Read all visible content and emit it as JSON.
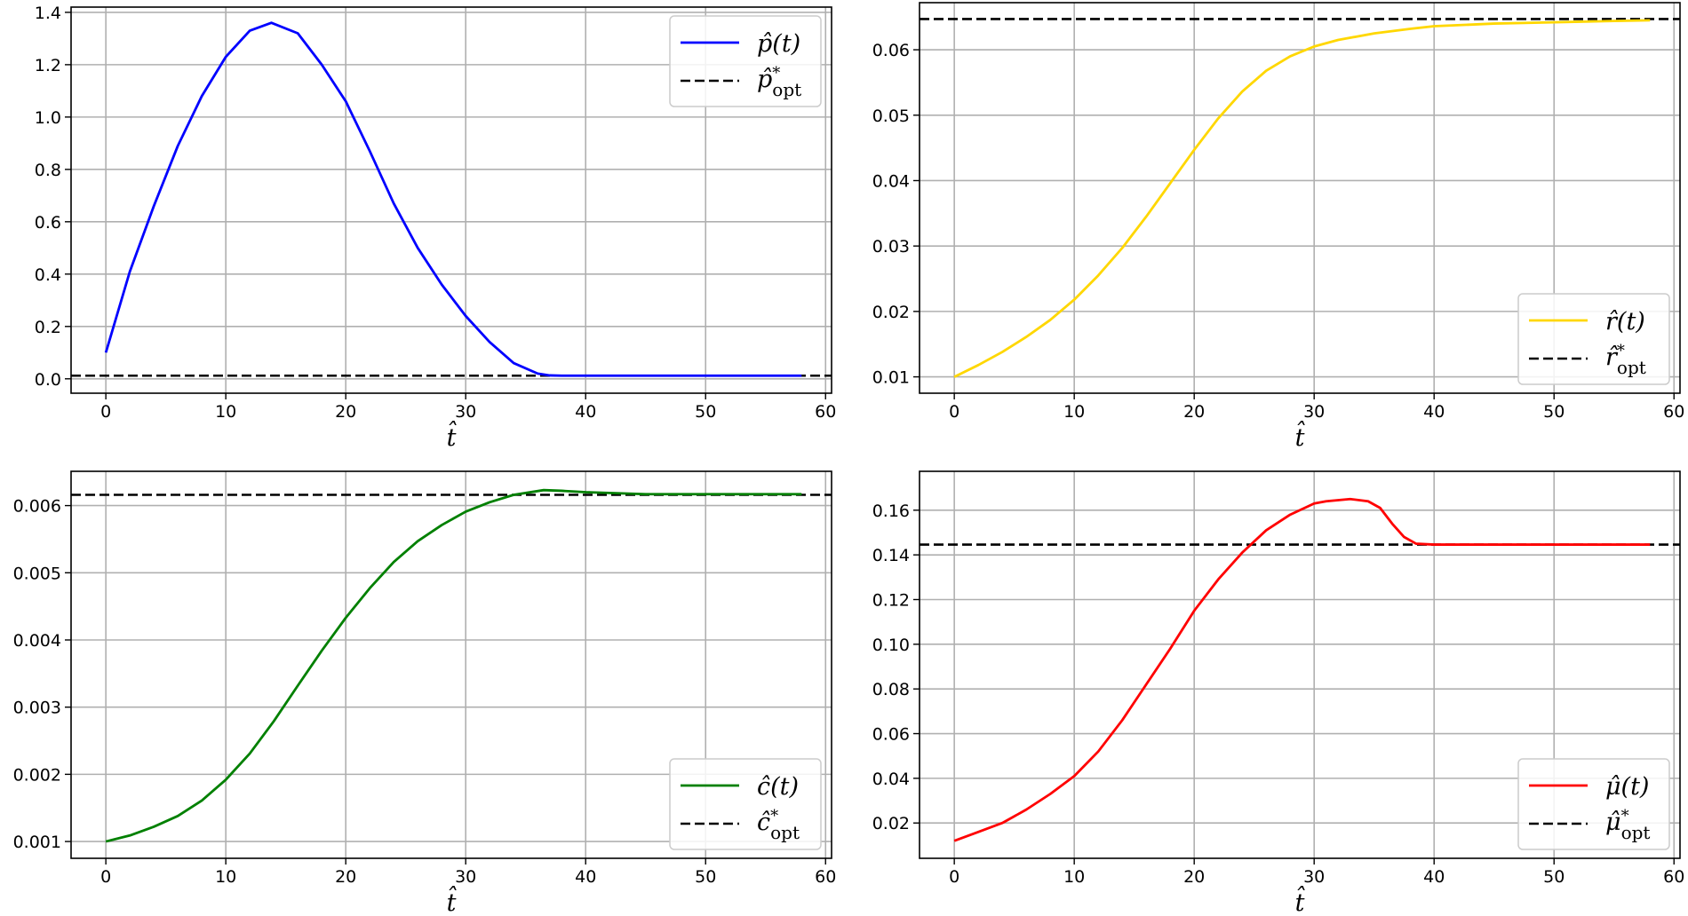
{
  "chart_data": [
    {
      "id": "p",
      "type": "line",
      "xlabel": "t̂",
      "xlim": [
        -2.9,
        60.5
      ],
      "ylim": [
        -0.055,
        1.42
      ],
      "xticks": [
        0,
        10,
        20,
        30,
        40,
        50,
        60
      ],
      "yticks": [
        0.0,
        0.2,
        0.4,
        0.6,
        0.8,
        1.0,
        1.2,
        1.4
      ],
      "ytick_labels": [
        "0.0",
        "0.2",
        "0.4",
        "0.6",
        "0.8",
        "1.0",
        "1.2",
        "1.4"
      ],
      "grid": true,
      "legend_position": "top-right",
      "series": [
        {
          "name": "p̂(t)",
          "color": "#0000ff",
          "style": "solid",
          "x": [
            0,
            2,
            4,
            6,
            8,
            10,
            12,
            13.8,
            16,
            18,
            20,
            22,
            24,
            26,
            28,
            30,
            32,
            34,
            36,
            37,
            38,
            40,
            45,
            50,
            55,
            58
          ],
          "y": [
            0.1,
            0.41,
            0.66,
            0.89,
            1.08,
            1.23,
            1.33,
            1.36,
            1.32,
            1.2,
            1.06,
            0.87,
            0.67,
            0.5,
            0.36,
            0.24,
            0.14,
            0.06,
            0.02,
            0.013,
            0.012,
            0.012,
            0.012,
            0.012,
            0.012,
            0.012
          ]
        }
      ],
      "reference": {
        "name": "p̂*opt",
        "label_base": "p̂",
        "label_sup": "*",
        "label_sub": "opt",
        "value": 0.012,
        "color": "#000000",
        "style": "dashed"
      }
    },
    {
      "id": "r",
      "type": "line",
      "xlabel": "t̂",
      "xlim": [
        -2.9,
        60.5
      ],
      "ylim": [
        0.0075,
        0.0672
      ],
      "xticks": [
        0,
        10,
        20,
        30,
        40,
        50,
        60
      ],
      "yticks": [
        0.01,
        0.02,
        0.03,
        0.04,
        0.05,
        0.06
      ],
      "ytick_labels": [
        "0.01",
        "0.02",
        "0.03",
        "0.04",
        "0.05",
        "0.06"
      ],
      "grid": true,
      "legend_position": "bottom-right",
      "series": [
        {
          "name": "r̂(t)",
          "color": "#ffd700",
          "style": "solid",
          "x": [
            0,
            2,
            4,
            6,
            8,
            10,
            12,
            14,
            16,
            18,
            20,
            22,
            24,
            26,
            28,
            30,
            32,
            35,
            38,
            40,
            45,
            50,
            55,
            58
          ],
          "y": [
            0.01,
            0.0118,
            0.0138,
            0.0161,
            0.0187,
            0.0218,
            0.0255,
            0.0297,
            0.0345,
            0.0396,
            0.0447,
            0.0495,
            0.0536,
            0.0568,
            0.059,
            0.0605,
            0.0615,
            0.0625,
            0.0632,
            0.0636,
            0.064,
            0.0642,
            0.0644,
            0.0645
          ]
        }
      ],
      "reference": {
        "name": "r̂*opt",
        "label_base": "r̂",
        "label_sup": "*",
        "label_sub": "opt",
        "value": 0.0647,
        "color": "#000000",
        "style": "dashed"
      }
    },
    {
      "id": "c",
      "type": "line",
      "xlabel": "t̂",
      "xlim": [
        -2.9,
        60.5
      ],
      "ylim": [
        0.00075,
        0.00651
      ],
      "xticks": [
        0,
        10,
        20,
        30,
        40,
        50,
        60
      ],
      "yticks": [
        0.001,
        0.002,
        0.003,
        0.004,
        0.005,
        0.006
      ],
      "ytick_labels": [
        "0.001",
        "0.002",
        "0.003",
        "0.004",
        "0.005",
        "0.006"
      ],
      "grid": true,
      "legend_position": "bottom-right",
      "series": [
        {
          "name": "ĉ(t)",
          "color": "#008000",
          "style": "solid",
          "x": [
            0,
            2,
            4,
            6,
            8,
            10,
            12,
            14,
            16,
            18,
            20,
            22,
            24,
            26,
            28,
            30,
            32,
            34,
            36.5,
            38,
            40,
            45,
            50,
            55,
            58
          ],
          "y": [
            0.001,
            0.00109,
            0.00122,
            0.00138,
            0.00161,
            0.00192,
            0.00231,
            0.00279,
            0.00332,
            0.00384,
            0.00433,
            0.00477,
            0.00516,
            0.00547,
            0.00571,
            0.00591,
            0.00605,
            0.00616,
            0.00623,
            0.00622,
            0.0062,
            0.00617,
            0.00617,
            0.00617,
            0.00617
          ]
        }
      ],
      "reference": {
        "name": "ĉ*opt",
        "label_base": "ĉ",
        "label_sup": "*",
        "label_sub": "opt",
        "value": 0.00616,
        "color": "#000000",
        "style": "dashed"
      }
    },
    {
      "id": "mu",
      "type": "line",
      "xlabel": "t̂",
      "xlim": [
        -2.9,
        60.5
      ],
      "ylim": [
        0.0042,
        0.1774
      ],
      "xticks": [
        0,
        10,
        20,
        30,
        40,
        50,
        60
      ],
      "yticks": [
        0.02,
        0.04,
        0.06,
        0.08,
        0.1,
        0.12,
        0.14,
        0.16
      ],
      "ytick_labels": [
        "0.02",
        "0.04",
        "0.06",
        "0.08",
        "0.10",
        "0.12",
        "0.14",
        "0.16"
      ],
      "grid": true,
      "legend_position": "bottom-right",
      "series": [
        {
          "name": "μ̂(t)",
          "color": "#ff0000",
          "style": "solid",
          "x": [
            0,
            2,
            4,
            6,
            8,
            10,
            12,
            14,
            16,
            18,
            20,
            22,
            24,
            26,
            28,
            30,
            31,
            33,
            34.5,
            35.5,
            36.5,
            37.5,
            38.5,
            40,
            45,
            50,
            55,
            58
          ],
          "y": [
            0.012,
            0.016,
            0.02,
            0.026,
            0.033,
            0.041,
            0.052,
            0.066,
            0.082,
            0.098,
            0.115,
            0.129,
            0.141,
            0.151,
            0.158,
            0.163,
            0.164,
            0.165,
            0.164,
            0.161,
            0.154,
            0.148,
            0.145,
            0.1446,
            0.1446,
            0.1446,
            0.1446,
            0.1446
          ]
        }
      ],
      "reference": {
        "name": "μ̂*opt",
        "label_base": "μ̂",
        "label_sup": "*",
        "label_sub": "opt",
        "value": 0.1446,
        "color": "#000000",
        "style": "dashed"
      }
    }
  ]
}
